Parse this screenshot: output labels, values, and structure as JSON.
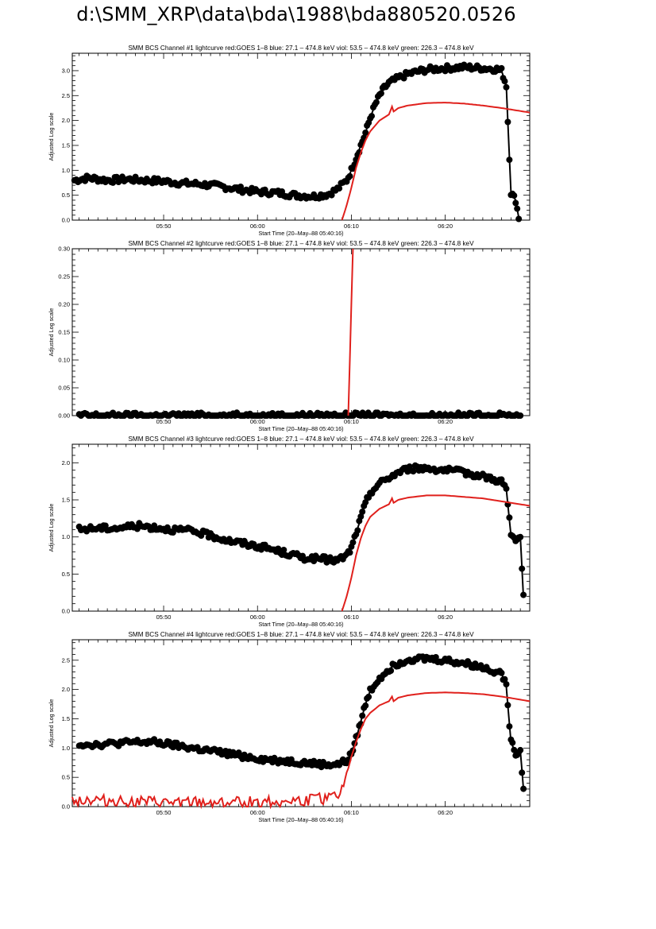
{
  "page": {
    "title": "d:\\SMM_XRP\\data\\bda\\1988\\bda880520.0526"
  },
  "colors": {
    "goes": "#e0201c",
    "bcs": "#000000",
    "axis": "#000000"
  },
  "chart_data": [
    {
      "type": "line",
      "title": "SMM BCS Channel #1 lightcurve  red:GOES 1–8  blue: 27.1 – 474.8 keV  viol: 53.5 – 474.8 keV  green: 226.3 – 474.8 keV",
      "xlabel": "Start Time (20–May–88 05:40:16)",
      "ylabel": "Adjusted Log scale",
      "xlim": [
        "05:40:16",
        "06:29:00"
      ],
      "ylim": [
        0,
        3.35
      ],
      "x_ticks": [
        "05:50",
        "06:00",
        "06:10",
        "06:20"
      ],
      "y_ticks": [
        "0.0",
        "0.5",
        "1.0",
        "1.5",
        "2.0",
        "2.5",
        "3.0"
      ],
      "series": [
        {
          "color": "black",
          "marker": "circle",
          "x": [
            "05:40:30",
            "05:42:00",
            "05:44:00",
            "05:46:00",
            "05:48:00",
            "05:50:00",
            "05:52:00",
            "05:54:00",
            "05:56:00",
            "05:58:00",
            "06:00:00",
            "06:02:00",
            "06:04:00",
            "06:06:00",
            "06:07:30",
            "06:08:30",
            "06:09:30",
            "06:10:00",
            "06:10:30",
            "06:11:00",
            "06:11:30",
            "06:12:00",
            "06:12:30",
            "06:13:00",
            "06:13:30",
            "06:14:00",
            "06:15:00",
            "06:16:00",
            "06:17:00",
            "06:18:00",
            "06:20:00",
            "06:22:00",
            "06:24:00",
            "06:25:30",
            "06:26:00",
            "06:26:30",
            "06:27:00",
            "06:27:30",
            "06:27:50"
          ],
          "y": [
            0.8,
            0.85,
            0.8,
            0.82,
            0.8,
            0.78,
            0.74,
            0.72,
            0.68,
            0.62,
            0.57,
            0.55,
            0.5,
            0.48,
            0.52,
            0.62,
            0.8,
            1.0,
            1.25,
            1.5,
            1.75,
            2.05,
            2.3,
            2.5,
            2.65,
            2.75,
            2.85,
            2.93,
            2.98,
            3.02,
            3.05,
            3.07,
            3.05,
            3.03,
            3.0,
            2.7,
            0.55,
            0.4,
            0.05
          ]
        },
        {
          "color": "red",
          "marker": "none",
          "x": [
            "06:09:00",
            "06:09:30",
            "06:10:00",
            "06:10:30",
            "06:11:00",
            "06:11:30",
            "06:12:00",
            "06:13:00",
            "06:14:00",
            "06:14:20",
            "06:14:30",
            "06:15:00",
            "06:16:00",
            "06:18:00",
            "06:20:00",
            "06:22:00",
            "06:24:00",
            "06:26:00",
            "06:29:00"
          ],
          "y": [
            0.0,
            0.3,
            0.65,
            1.05,
            1.35,
            1.6,
            1.78,
            2.0,
            2.12,
            2.28,
            2.18,
            2.25,
            2.3,
            2.35,
            2.36,
            2.34,
            2.3,
            2.25,
            2.16
          ]
        }
      ]
    },
    {
      "type": "line",
      "title": "SMM BCS Channel #2 lightcurve  red:GOES 1–8  blue: 27.1 – 474.8 keV  viol: 53.5 – 474.8 keV  green: 226.3 – 474.8 keV",
      "xlabel": "Start Time (20–May–88 05:40:16)",
      "ylabel": "Adjusted Log scale",
      "xlim": [
        "05:40:16",
        "06:29:00"
      ],
      "ylim": [
        0,
        0.3
      ],
      "x_ticks": [
        "05:50",
        "06:00",
        "06:10",
        "06:20"
      ],
      "y_ticks": [
        "0.00",
        "0.05",
        "0.10",
        "0.15",
        "0.20",
        "0.25",
        "0.30"
      ],
      "series": [
        {
          "color": "black",
          "marker": "circle",
          "x": [
            "05:41:00",
            "05:45:00",
            "05:50:00",
            "05:55:00",
            "06:00:00",
            "06:05:00",
            "06:10:00",
            "06:15:00",
            "06:20:00",
            "06:25:00",
            "06:28:00"
          ],
          "y": [
            0,
            0,
            0,
            0,
            0,
            0,
            0,
            0,
            0,
            0,
            0
          ]
        },
        {
          "color": "red",
          "marker": "none",
          "x": [
            "06:09:40",
            "06:10:10"
          ],
          "y": [
            0.0,
            0.3
          ]
        }
      ]
    },
    {
      "type": "line",
      "title": "SMM BCS Channel #3 lightcurve  red:GOES 1–8  blue: 27.1 – 474.8 keV  viol: 53.5 – 474.8 keV  green: 226.3 – 474.8 keV",
      "xlabel": "Start Time (20–May–88 05:40:16)",
      "ylabel": "Adjusted Log scale",
      "xlim": [
        "05:40:16",
        "06:29:00"
      ],
      "ylim": [
        0,
        2.25
      ],
      "x_ticks": [
        "05:50",
        "06:00",
        "06:10",
        "06:20"
      ],
      "y_ticks": [
        "0.0",
        "0.5",
        "1.0",
        "1.5",
        "2.0"
      ],
      "series": [
        {
          "color": "black",
          "marker": "circle",
          "x": [
            "05:41:00",
            "05:43:00",
            "05:45:00",
            "05:47:00",
            "05:49:00",
            "05:51:00",
            "05:53:00",
            "05:55:00",
            "05:57:00",
            "05:59:00",
            "06:01:00",
            "06:03:00",
            "06:05:00",
            "06:07:00",
            "06:08:30",
            "06:09:30",
            "06:10:00",
            "06:10:30",
            "06:11:00",
            "06:11:30",
            "06:12:00",
            "06:13:00",
            "06:14:00",
            "06:15:00",
            "06:16:00",
            "06:18:00",
            "06:20:00",
            "06:22:00",
            "06:24:00",
            "06:26:00",
            "06:26:30",
            "06:27:00",
            "06:27:30",
            "06:28:00",
            "06:28:20"
          ],
          "y": [
            1.1,
            1.12,
            1.12,
            1.15,
            1.13,
            1.1,
            1.08,
            1.02,
            0.95,
            0.9,
            0.85,
            0.78,
            0.72,
            0.7,
            0.68,
            0.75,
            0.85,
            1.05,
            1.25,
            1.45,
            1.6,
            1.72,
            1.8,
            1.87,
            1.92,
            1.93,
            1.9,
            1.87,
            1.82,
            1.75,
            1.65,
            1.02,
            0.95,
            1.0,
            0.18
          ]
        },
        {
          "color": "red",
          "marker": "none",
          "x": [
            "06:09:00",
            "06:09:30",
            "06:10:00",
            "06:10:30",
            "06:11:00",
            "06:11:30",
            "06:12:00",
            "06:13:00",
            "06:14:00",
            "06:14:20",
            "06:14:30",
            "06:15:00",
            "06:16:00",
            "06:18:00",
            "06:20:00",
            "06:22:00",
            "06:24:00",
            "06:26:00",
            "06:29:00"
          ],
          "y": [
            0.0,
            0.2,
            0.45,
            0.75,
            0.98,
            1.15,
            1.27,
            1.38,
            1.44,
            1.52,
            1.46,
            1.5,
            1.53,
            1.56,
            1.56,
            1.54,
            1.52,
            1.48,
            1.42
          ]
        }
      ]
    },
    {
      "type": "line",
      "title": "SMM BCS Channel #4 lightcurve  red:GOES 1–8  blue: 27.1 – 474.8 keV  viol: 53.5 – 474.8 keV  green: 226.3 – 474.8 keV",
      "xlabel": "Start Time (20–May–88 05:40:16)",
      "ylabel": "Adjusted Log scale",
      "xlim": [
        "05:40:16",
        "06:29:00"
      ],
      "ylim": [
        0,
        2.85
      ],
      "x_ticks": [
        "05:50",
        "06:00",
        "06:10",
        "06:20"
      ],
      "y_ticks": [
        "0.0",
        "0.5",
        "1.0",
        "1.5",
        "2.0",
        "2.5"
      ],
      "series": [
        {
          "color": "black",
          "marker": "circle",
          "x": [
            "05:41:00",
            "05:43:00",
            "05:45:00",
            "05:47:00",
            "05:49:00",
            "05:51:00",
            "05:53:00",
            "05:55:00",
            "05:57:00",
            "05:59:00",
            "06:01:00",
            "06:03:00",
            "06:05:00",
            "06:07:00",
            "06:08:30",
            "06:09:30",
            "06:10:00",
            "06:10:30",
            "06:11:00",
            "06:11:30",
            "06:12:00",
            "06:13:00",
            "06:14:00",
            "06:15:00",
            "06:16:00",
            "06:18:00",
            "06:20:00",
            "06:22:00",
            "06:24:00",
            "06:26:00",
            "06:26:30",
            "06:27:00",
            "06:27:30",
            "06:28:00",
            "06:28:20"
          ],
          "y": [
            1.07,
            1.06,
            1.08,
            1.1,
            1.1,
            1.05,
            1.0,
            0.95,
            0.9,
            0.85,
            0.8,
            0.78,
            0.75,
            0.72,
            0.72,
            0.78,
            0.9,
            1.15,
            1.45,
            1.75,
            1.98,
            2.2,
            2.35,
            2.45,
            2.52,
            2.53,
            2.5,
            2.45,
            2.38,
            2.28,
            2.05,
            1.1,
            0.92,
            0.95,
            0.3
          ]
        },
        {
          "color": "red",
          "marker": "none",
          "x": [
            "05:40:16",
            "05:45:00",
            "05:50:00",
            "05:55:00",
            "06:00:00",
            "06:05:00",
            "06:08:00",
            "06:09:00",
            "06:09:30",
            "06:10:00",
            "06:10:30",
            "06:11:00",
            "06:11:30",
            "06:12:00",
            "06:13:00",
            "06:14:00",
            "06:14:20",
            "06:14:30",
            "06:15:00",
            "06:16:00",
            "06:18:00",
            "06:20:00",
            "06:22:00",
            "06:24:00",
            "06:26:00",
            "06:29:00"
          ],
          "y": [
            0.12,
            0.1,
            0.06,
            0.07,
            0.08,
            0.1,
            0.15,
            0.3,
            0.55,
            0.85,
            1.1,
            1.32,
            1.5,
            1.6,
            1.73,
            1.8,
            1.88,
            1.8,
            1.86,
            1.9,
            1.94,
            1.95,
            1.94,
            1.92,
            1.88,
            1.8
          ]
        }
      ]
    }
  ]
}
